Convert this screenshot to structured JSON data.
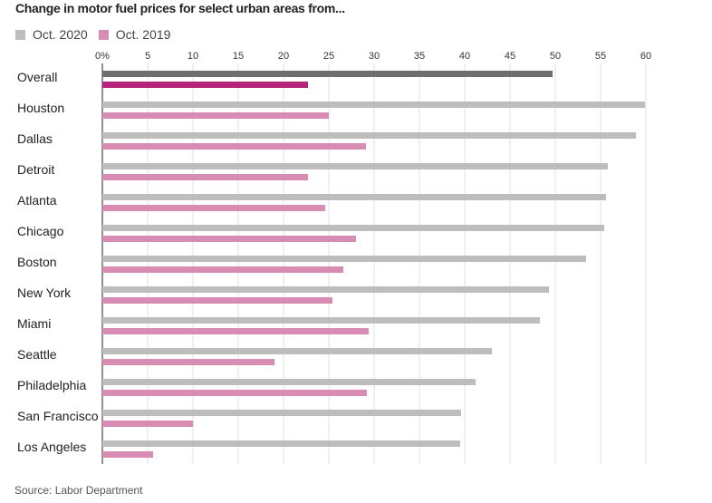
{
  "chart_data": {
    "type": "bar",
    "orientation": "horizontal",
    "title": "Change in motor fuel prices for select urban areas from...",
    "xlabel": "",
    "ylabel": "",
    "xlim": [
      0,
      60
    ],
    "ticks": [
      0,
      5,
      10,
      15,
      20,
      25,
      30,
      35,
      40,
      45,
      50,
      55,
      60
    ],
    "tick_labels": [
      "0%",
      "5",
      "10",
      "15",
      "20",
      "25",
      "30",
      "35",
      "40",
      "45",
      "50",
      "55",
      "60"
    ],
    "categories": [
      "Overall",
      "Houston",
      "Dallas",
      "Detroit",
      "Atlanta",
      "Chicago",
      "Boston",
      "New York",
      "Miami",
      "Seattle",
      "Philadelphia",
      "San Francisco",
      "Los Angeles"
    ],
    "series": [
      {
        "name": "Oct. 2020",
        "color": "#bdbdbd",
        "highlight_color": "#6e6e6e",
        "values": [
          49.7,
          59.9,
          58.9,
          55.8,
          55.6,
          55.4,
          53.4,
          49.3,
          48.3,
          43.0,
          41.2,
          39.6,
          39.5
        ]
      },
      {
        "name": "Oct. 2019",
        "color": "#d98cb3",
        "highlight_color": "#b5237a",
        "values": [
          22.7,
          25.0,
          29.1,
          22.7,
          24.6,
          28.0,
          26.6,
          25.4,
          29.4,
          19.0,
          29.2,
          10.0,
          5.6
        ]
      }
    ],
    "highlight_category": "Overall",
    "grid": true,
    "legend_position": "top-left"
  },
  "source": "Source: Labor Department"
}
